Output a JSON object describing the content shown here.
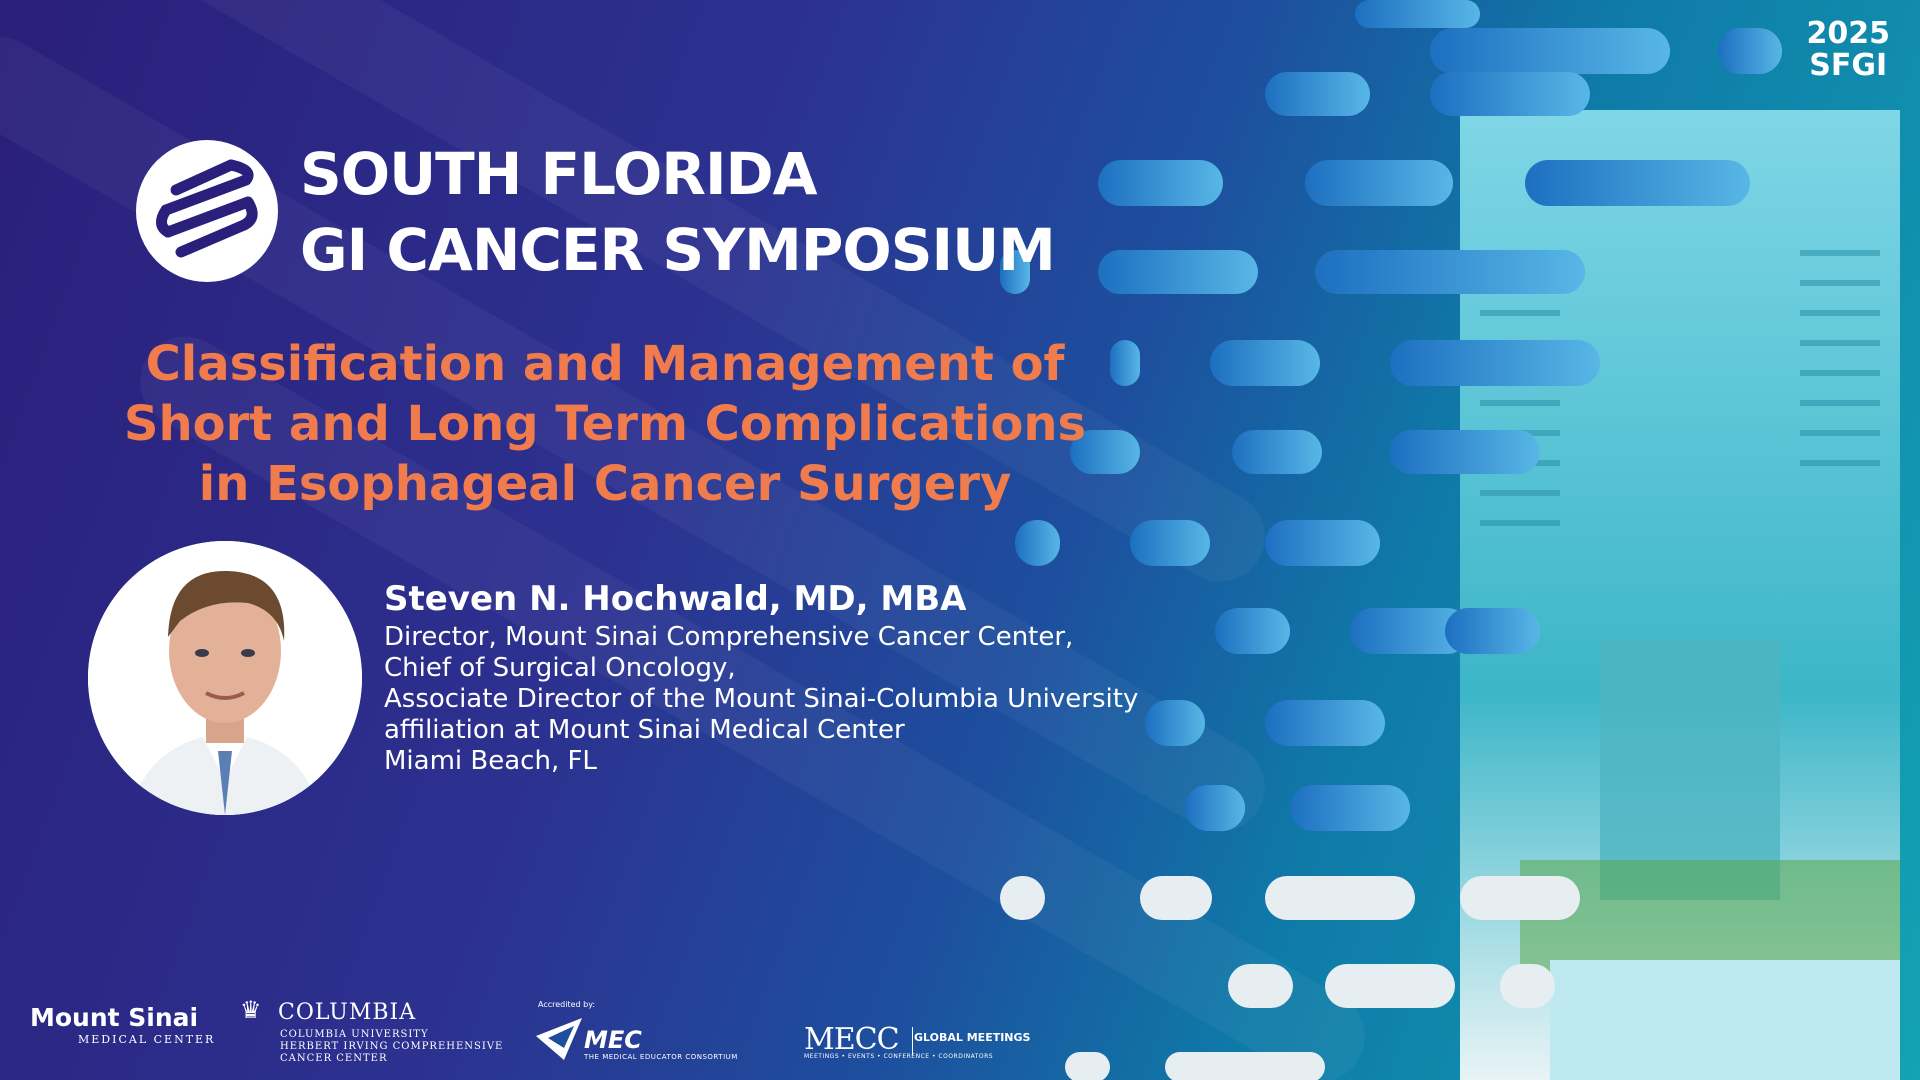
{
  "brand": {
    "symposium_line1": "SOUTH FLORIDA",
    "symposium_line2": "GI CANCER SYMPOSIUM",
    "year": "2025",
    "acronym": "SFGI"
  },
  "talk": {
    "title_line1": "Classification and Management of",
    "title_line2": "Short and Long Term Complications",
    "title_line3": "in Esophageal Cancer Surgery"
  },
  "speaker": {
    "name": "Steven N. Hochwald, MD, MBA",
    "line1": "Director, Mount Sinai Comprehensive Cancer Center,",
    "line2": "Chief of Surgical Oncology,",
    "line3": "Associate Director of the Mount Sinai-Columbia University",
    "line4": "affiliation at Mount Sinai Medical Center",
    "line5": "Miami Beach, FL"
  },
  "sponsors": {
    "mount_sinai": "Mount Sinai",
    "mount_sinai_sub": "MEDICAL CENTER",
    "columbia": "COLUMBIA",
    "columbia_sub1": "COLUMBIA UNIVERSITY",
    "columbia_sub2": "HERBERT IRVING COMPREHENSIVE",
    "columbia_sub3": "CANCER CENTER",
    "mec_accredited": "Accredited by:",
    "mec": "MEC",
    "mec_sub": "THE MEDICAL EDUCATOR CONSORTIUM",
    "mecc": "MECC",
    "mecc_side": "GLOBAL MEETINGS",
    "mecc_sub": "MEETINGS • EVENTS • CONFERENCE • COORDINATORS"
  },
  "colors": {
    "accent_orange": "#f07c4d",
    "teal": "#13a3b3",
    "navy": "#2a1f7a"
  },
  "icons": {
    "symposium_logo": "intestine-icon",
    "columbia_logo": "crown-icon"
  }
}
